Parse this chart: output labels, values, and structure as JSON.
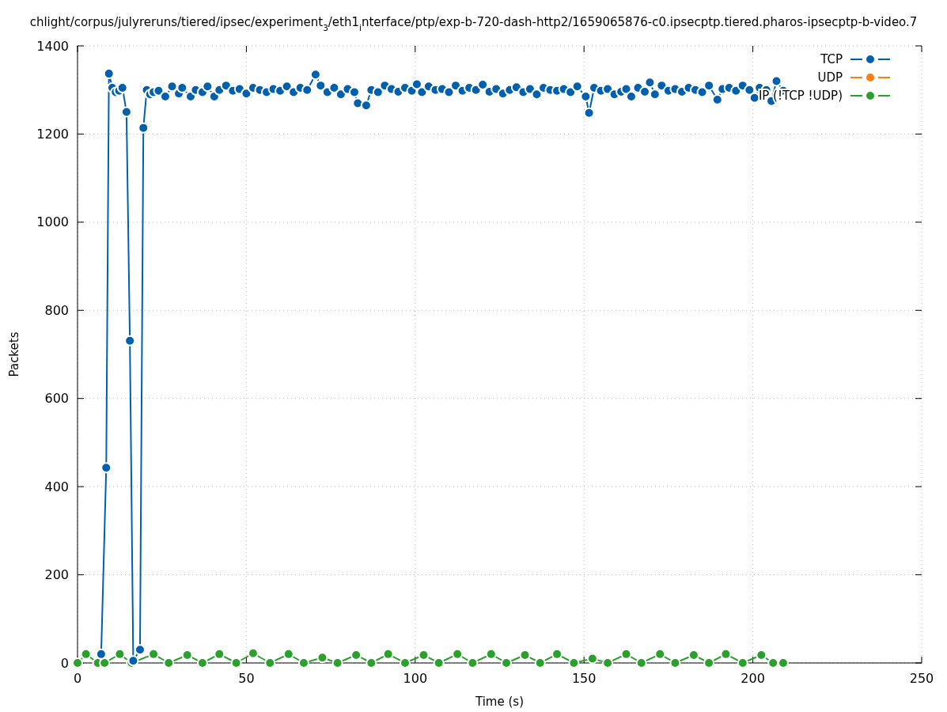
{
  "chart_data": {
    "type": "line",
    "title": "chlight/corpus/julyreruns/tiered/ipsec/experiment$_{3}$/eth1$_{i}$nterface/ptp/exp-b-720-dash-http2/1659065876-c0.ipsecptp.tiered.pharos-ipsecptp-b-video.7",
    "xlabel": "Time (s)",
    "ylabel": "Packets",
    "xlim": [
      0,
      250
    ],
    "ylim": [
      0,
      1400
    ],
    "xticks": [
      0,
      50,
      100,
      150,
      200,
      250
    ],
    "yticks": [
      0,
      200,
      400,
      600,
      800,
      1000,
      1200,
      1400
    ],
    "grid": true,
    "legend": "top right",
    "marker": "circle",
    "series": [
      {
        "name": "TCP",
        "color": "#0060ad",
        "x": [
          7,
          8.5,
          9.3,
          10.3,
          11.3,
          12.3,
          13.3,
          14.5,
          15.5,
          16.5,
          18.5,
          19.5,
          20.5,
          21.5,
          22.5,
          24,
          26,
          28,
          30,
          31,
          33.5,
          35,
          37,
          38.5,
          40.5,
          42,
          44,
          46,
          48,
          50,
          52,
          54,
          56,
          58,
          60,
          62,
          64,
          66,
          68,
          70.5,
          72,
          74,
          76,
          78,
          80,
          82,
          83,
          85.5,
          87,
          89,
          91,
          93,
          95,
          97,
          99,
          100.5,
          102,
          104,
          106,
          108,
          110,
          112,
          114,
          116,
          118,
          120,
          122,
          124,
          126,
          128,
          130,
          132,
          134,
          136,
          138,
          140,
          142,
          144,
          146,
          148,
          150.5,
          151.5,
          153,
          155,
          157,
          159,
          161,
          162.5,
          164,
          166,
          168,
          169.5,
          171,
          173,
          175,
          177,
          179,
          181,
          183,
          185,
          187,
          189.5,
          191,
          193,
          195,
          197,
          199,
          200.5,
          202,
          204,
          205.5,
          207,
          209
        ],
        "values": [
          20,
          443,
          1337,
          1305,
          1295,
          1298,
          1305,
          1250,
          731,
          5,
          30,
          1214,
          1300,
          1290,
          1295,
          1298,
          1285,
          1308,
          1292,
          1305,
          1285,
          1300,
          1295,
          1308,
          1285,
          1300,
          1310,
          1298,
          1302,
          1292,
          1305,
          1300,
          1295,
          1302,
          1298,
          1308,
          1295,
          1305,
          1300,
          1335,
          1310,
          1295,
          1305,
          1290,
          1302,
          1295,
          1270,
          1265,
          1300,
          1295,
          1310,
          1302,
          1296,
          1305,
          1298,
          1313,
          1295,
          1308,
          1300,
          1302,
          1295,
          1310,
          1298,
          1305,
          1300,
          1312,
          1296,
          1302,
          1292,
          1300,
          1306,
          1295,
          1302,
          1290,
          1305,
          1300,
          1298,
          1302,
          1295,
          1308,
          1285,
          1248,
          1305,
          1298,
          1302,
          1290,
          1296,
          1302,
          1285,
          1305,
          1296,
          1317,
          1290,
          1310,
          1298,
          1302,
          1296,
          1305,
          1300,
          1295,
          1310,
          1278,
          1302,
          1305,
          1298,
          1310,
          1300,
          1282,
          1305,
          1300,
          1275,
          1320,
          1298
        ]
      },
      {
        "name": "UDP",
        "color": "#ff7f0e"
      },
      {
        "name": "IP (!TCP  !UDP)",
        "color": "#2ca02c",
        "x": [
          0,
          2.5,
          6,
          8,
          12.5,
          16,
          22.5,
          27,
          32.5,
          37,
          42,
          47,
          52,
          57,
          62.5,
          67,
          72.5,
          77,
          82.5,
          87,
          92,
          97,
          102.5,
          107,
          112.5,
          117,
          122.5,
          127,
          132.5,
          137,
          142,
          147,
          152.5,
          157,
          162.5,
          167,
          172.5,
          177,
          182.5,
          187,
          192,
          197,
          202.5,
          206,
          209
        ],
        "values": [
          0,
          20,
          0,
          0,
          20,
          0,
          20,
          0,
          18,
          0,
          20,
          0,
          22,
          0,
          20,
          0,
          12,
          0,
          18,
          0,
          20,
          0,
          18,
          0,
          20,
          0,
          20,
          0,
          18,
          0,
          20,
          0,
          10,
          0,
          20,
          0,
          20,
          0,
          18,
          0,
          20,
          0,
          18,
          0,
          0
        ]
      }
    ]
  }
}
